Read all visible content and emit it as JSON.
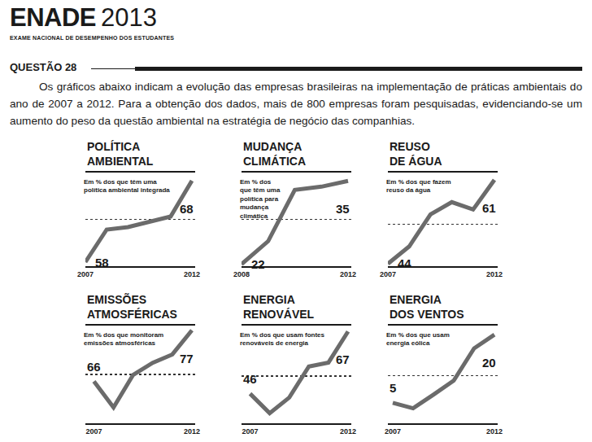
{
  "header": {
    "title": "ENADE",
    "year": "2013",
    "subtitle": "EXAME NACIONAL DE DESEMPENHO DOS ESTUDANTES"
  },
  "question": "QUESTÃO 28",
  "text": "Os gráficos abaixo indicam a evolução das empresas brasileiras na implementação de práticas ambientais do ano de 2007 a 2012. Para a obtenção dos dados, mais de 800 empresas foram pesquisadas, evidenciando-se um aumento do peso da questão ambiental na estratégia de negócio das companhias.",
  "chart_data": [
    {
      "type": "line",
      "title": "POLÍTICA\nAMBIENTAL",
      "annotation": "Em % dos que têm uma\npolítica ambiental integrada",
      "categories": [
        "2007",
        null,
        null,
        null,
        null,
        "2012"
      ],
      "values": [
        58,
        62,
        62.3,
        63,
        63.6,
        68
      ],
      "value_labels": [
        "58",
        null,
        null,
        null,
        null,
        "68"
      ],
      "data_labels": true,
      "color": "#6b6b6b",
      "ylim": [
        57.5,
        69
      ],
      "yticks": [
        63.25
      ],
      "grid": true,
      "tick_labels": "x"
    },
    {
      "type": "line",
      "title": "MUDANÇA\nCLIMÁTICA",
      "annotation": "Em % dos\nque têm uma\npolítica para\nmudança\nclimática",
      "categories": [
        "2008",
        null,
        null,
        null,
        "2012"
      ],
      "values": [
        22,
        25.6,
        33.6,
        34.1,
        35
      ],
      "value_labels": [
        "22",
        null,
        null,
        null,
        "35"
      ],
      "data_labels": true,
      "color": "#6b6b6b",
      "ylim": [
        21.7,
        36.3
      ],
      "yticks": [
        29
      ],
      "grid": true,
      "tick_labels": "x"
    },
    {
      "type": "line",
      "title": "REUSO\nDE ÁGUA",
      "annotation": "Em % dos que fazem\nreuso da água",
      "categories": [
        "2007",
        null,
        null,
        null,
        null,
        "2012"
      ],
      "values": [
        44,
        47.5,
        54,
        56.5,
        55,
        61
      ],
      "value_labels": [
        "44",
        null,
        null,
        null,
        null,
        "61"
      ],
      "data_labels": true,
      "color": "#6b6b6b",
      "ylim": [
        43.5,
        62.5
      ],
      "yticks": [
        52
      ],
      "grid": true,
      "tick_labels": "x"
    },
    {
      "type": "line",
      "title": "EMISSÕES\nATMOSFÉRICAS",
      "annotation": "Em % dos que monitoram\nemissões atmosféricas",
      "categories": [
        "2007",
        null,
        null,
        null,
        null,
        "2012"
      ],
      "values": [
        66,
        60.4,
        67.4,
        70,
        71.8,
        77
      ],
      "value_labels": [
        "66",
        null,
        null,
        null,
        null,
        "77"
      ],
      "data_labels": true,
      "color": "#6b6b6b",
      "ylim": [
        57,
        78
      ],
      "yticks": [
        67.5
      ],
      "grid": true,
      "tick_labels": "x"
    },
    {
      "type": "line",
      "title": "ENERGIA\nRENOVÁVEL",
      "annotation": "Em % dos que usam fontes\nrenováveis de energia",
      "categories": [
        "2007",
        null,
        null,
        null,
        null,
        "2012"
      ],
      "values": [
        46,
        39.4,
        44.7,
        55.2,
        56.5,
        67
      ],
      "value_labels": [
        "46",
        null,
        null,
        null,
        null,
        "67"
      ],
      "data_labels": true,
      "color": "#6b6b6b",
      "ylim": [
        36,
        69
      ],
      "yticks": [
        52
      ],
      "grid": true,
      "tick_labels": "x"
    },
    {
      "type": "line",
      "title": "ENERGIA\nDOS VENTOS",
      "annotation": "Em % dos que usam\nenergia eólica",
      "categories": [
        "2007",
        null,
        null,
        null,
        null,
        "2012"
      ],
      "values": [
        5,
        3.8,
        6.8,
        9.9,
        17,
        20
      ],
      "value_labels": [
        "5",
        null,
        null,
        null,
        null,
        "20"
      ],
      "data_labels": true,
      "color": "#6b6b6b",
      "ylim": [
        0.5,
        22
      ],
      "yticks": [
        11
      ],
      "grid": true,
      "tick_labels": "x"
    }
  ]
}
